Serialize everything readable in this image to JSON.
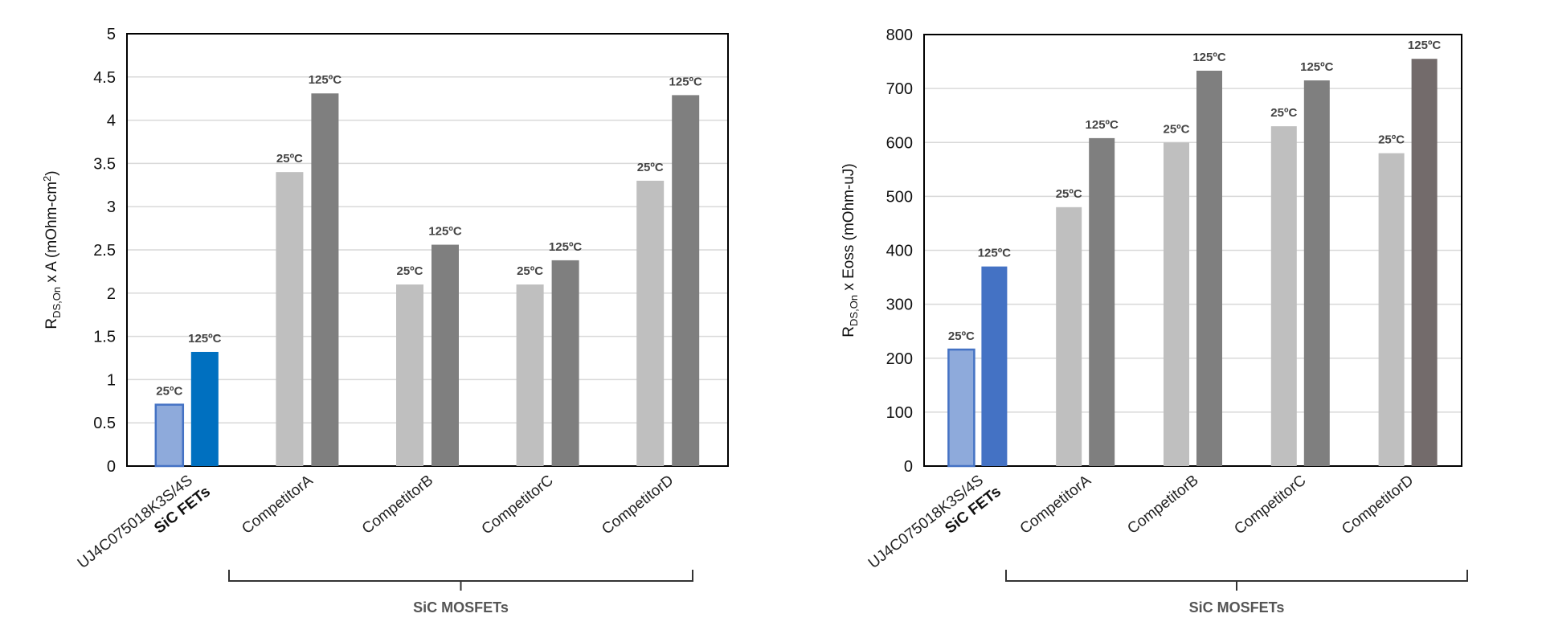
{
  "chart_data": [
    {
      "type": "bar",
      "id": "left",
      "ylabel": {
        "prefix": "R",
        "sub": "DS,On",
        "mid": " x A (mOhm-cm",
        "sup": "2",
        "suffix": ")"
      },
      "ylim": [
        0,
        5
      ],
      "yticks": [
        "0",
        "0.5",
        "1",
        "1.5",
        "2",
        "2.5",
        "3",
        "3.5",
        "4",
        "4.5",
        "5"
      ],
      "ytick_values": [
        0,
        0.5,
        1,
        1.5,
        2,
        2.5,
        3,
        3.5,
        4,
        4.5,
        5
      ],
      "grid": true,
      "categories": [
        "UJ4C075018K3S/4S",
        "CompetitorA",
        "CompetitorB",
        "CompetitorC",
        "CompetitorD"
      ],
      "subtitle_first": "SiC FETs",
      "group_label": "SiC MOSFETs",
      "series": [
        {
          "name": "25°C",
          "label": "25ºC",
          "values": [
            0.71,
            3.4,
            2.1,
            2.1,
            3.3
          ],
          "colors": [
            "#8eaadb",
            "#bfbfbf",
            "#bfbfbf",
            "#bfbfbf",
            "#bfbfbf"
          ]
        },
        {
          "name": "125°C",
          "label": "125ºC",
          "values": [
            1.32,
            4.31,
            2.56,
            2.38,
            4.29
          ],
          "colors": [
            "#0070c0",
            "#7f7f7f",
            "#7f7f7f",
            "#7f7f7f",
            "#7f7f7f"
          ]
        }
      ]
    },
    {
      "type": "bar",
      "id": "right",
      "ylabel": {
        "prefix": "R",
        "sub": "DS,On",
        "mid": " x Eoss (mOhm-uJ)",
        "sup": "",
        "suffix": ""
      },
      "ylim": [
        0,
        800
      ],
      "yticks": [
        "0",
        "100",
        "200",
        "300",
        "400",
        "500",
        "600",
        "700",
        "800"
      ],
      "ytick_values": [
        0,
        100,
        200,
        300,
        400,
        500,
        600,
        700,
        800
      ],
      "grid": true,
      "categories": [
        "UJ4C075018K3S/4S",
        "CompetitorA",
        "CompetitorB",
        "CompetitorC",
        "CompetitorD"
      ],
      "subtitle_first": "SiC FETs",
      "group_label": "SiC MOSFETs",
      "series": [
        {
          "name": "25°C",
          "label": "25ºC",
          "values": [
            216,
            480,
            600,
            630,
            580
          ],
          "colors": [
            "#8eaadb",
            "#bfbfbf",
            "#bfbfbf",
            "#bfbfbf",
            "#bfbfbf"
          ]
        },
        {
          "name": "125°C",
          "label": "125ºC",
          "values": [
            370,
            608,
            733,
            715,
            755
          ],
          "colors": [
            "#4472c4",
            "#7f7f7f",
            "#7f7f7f",
            "#7f7f7f",
            "#736b6b"
          ]
        }
      ]
    }
  ]
}
